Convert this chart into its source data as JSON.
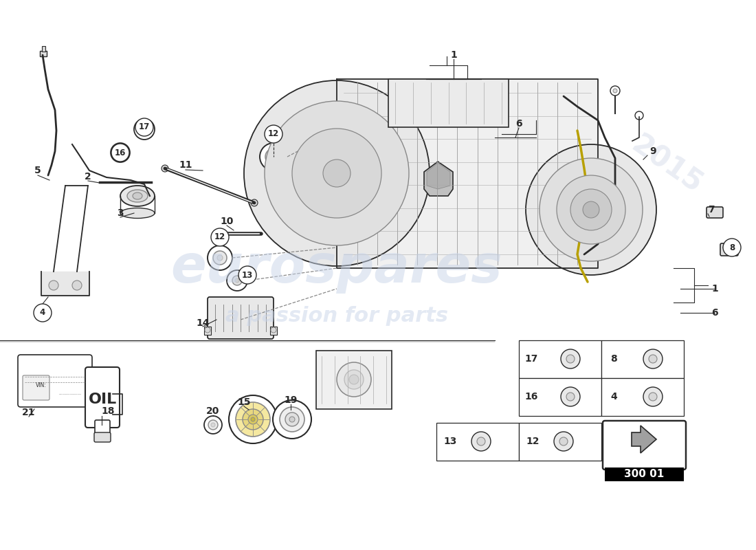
{
  "bg_color": "#ffffff",
  "watermark1": "eurospares",
  "watermark2": "a passion for parts",
  "watermark_year": "2015",
  "part_number": "300 01",
  "gray": "#2a2a2a",
  "lgray": "#888888",
  "llgray": "#bbbbbb"
}
